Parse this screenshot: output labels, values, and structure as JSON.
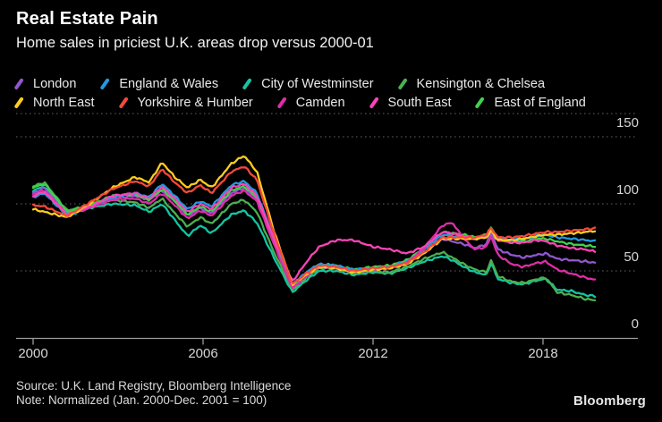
{
  "header": {
    "title": "Real Estate Pain",
    "subtitle": "Home sales in priciest U.K. areas drop versus 2000-01"
  },
  "footer": {
    "source": "Source: U.K. Land Registry, Bloomberg Intelligence",
    "note": "Note: Normalized (Jan. 2000-Dec. 2001 = 100)",
    "brand": "Bloomberg"
  },
  "colors": {
    "background": "#000000",
    "grid": "#606060",
    "axis": "#9b9b9b",
    "tick_label": "#d6d6d6"
  },
  "chart_data": {
    "type": "line",
    "title": "Real Estate Pain",
    "subtitle": "Home sales in priciest U.K. areas drop versus 2000-01",
    "note": "Normalized (Jan. 2000-Dec. 2001 = 100)",
    "legend_position": "top",
    "grid": "dotted-horizontal",
    "x_axis": {
      "tick_labels": [
        "2000",
        "2006",
        "2012",
        "2018"
      ],
      "tick_years": [
        2000,
        2006,
        2012,
        2018
      ],
      "range": [
        2000,
        2019.9
      ]
    },
    "y_axis": {
      "tick_labels": [
        "150",
        "100",
        "50",
        "0"
      ],
      "tick_values": [
        150,
        100,
        50,
        0
      ],
      "gridlines": [
        150,
        100,
        50
      ],
      "range": [
        0,
        167
      ]
    },
    "legend_rows": [
      [
        "London",
        "England & Wales",
        "City of Westminster",
        "Kensington & Chelsea"
      ],
      [
        "North East",
        "Yorkshire & Humber",
        "Camden",
        "South East",
        "East of England"
      ]
    ],
    "x_anchors": [
      2000.0,
      2000.4,
      2001.2,
      2002.0,
      2002.8,
      2003.6,
      2004.1,
      2004.55,
      2005.0,
      2005.45,
      2005.9,
      2006.3,
      2007.0,
      2007.45,
      2007.9,
      2008.5,
      2009.15,
      2009.7,
      2010.1,
      2010.7,
      2011.3,
      2012.0,
      2012.6,
      2013.2,
      2013.8,
      2014.45,
      2014.8,
      2015.2,
      2015.6,
      2016.0,
      2016.17,
      2016.4,
      2016.9,
      2017.3,
      2017.8,
      2018.1,
      2018.5,
      2019.0,
      2019.5,
      2019.9
    ],
    "series": [
      {
        "name": "London",
        "color": "#9257cf",
        "values": [
          108,
          112,
          92,
          98,
          104,
          106,
          103,
          110,
          102,
          91,
          97,
          93,
          108,
          112,
          104,
          72,
          38,
          48,
          54,
          53,
          50,
          52,
          53,
          56,
          64,
          74,
          72,
          70,
          67,
          70,
          79,
          66,
          62,
          60,
          62,
          63,
          59,
          58,
          57,
          56
        ]
      },
      {
        "name": "England & Wales",
        "color": "#2499e0",
        "values": [
          105,
          108,
          91,
          97,
          105,
          108,
          105,
          115,
          106,
          96,
          102,
          98,
          114,
          117,
          108,
          74,
          40,
          50,
          55,
          54,
          51,
          52,
          53,
          57,
          66,
          77,
          76,
          75,
          74,
          76,
          82,
          74,
          73,
          74,
          76,
          77,
          75,
          74,
          73,
          72
        ]
      },
      {
        "name": "City of Westminster",
        "color": "#14c5a4",
        "values": [
          110,
          113,
          93,
          97,
          100,
          99,
          94,
          100,
          88,
          76,
          84,
          78,
          92,
          95,
          86,
          60,
          34,
          44,
          50,
          50,
          47,
          49,
          48,
          52,
          57,
          61,
          58,
          53,
          49,
          47,
          56,
          44,
          41,
          40,
          43,
          44,
          36,
          35,
          32,
          31
        ]
      },
      {
        "name": "Kensington & Chelsea",
        "color": "#4caf50",
        "values": [
          113,
          116,
          95,
          99,
          103,
          101,
          97,
          104,
          93,
          83,
          90,
          85,
          100,
          103,
          94,
          64,
          36,
          46,
          52,
          52,
          48,
          50,
          49,
          53,
          59,
          64,
          60,
          55,
          51,
          49,
          58,
          46,
          42,
          41,
          44,
          45,
          34,
          32,
          29,
          28
        ]
      },
      {
        "name": "North East",
        "color": "#ffcd1e",
        "values": [
          96,
          94,
          90,
          100,
          112,
          120,
          116,
          131,
          120,
          112,
          118,
          112,
          130,
          136,
          124,
          80,
          40,
          48,
          53,
          52,
          49,
          51,
          52,
          55,
          63,
          74,
          74,
          74,
          74,
          75,
          80,
          73,
          73,
          74,
          76,
          77,
          77,
          78,
          79,
          80
        ]
      },
      {
        "name": "Yorkshire & Humber",
        "color": "#f4483c",
        "values": [
          99,
          98,
          91,
          101,
          111,
          117,
          113,
          126,
          116,
          108,
          114,
          108,
          124,
          128,
          118,
          78,
          40,
          49,
          54,
          53,
          50,
          52,
          53,
          56,
          64,
          75,
          75,
          75,
          75,
          77,
          82,
          75,
          75,
          76,
          78,
          79,
          79,
          80,
          81,
          82
        ]
      },
      {
        "name": "Camden",
        "color": "#dc2ea6",
        "values": [
          107,
          110,
          92,
          97,
          103,
          104,
          100,
          108,
          99,
          89,
          95,
          91,
          106,
          110,
          102,
          70,
          37,
          47,
          53,
          52,
          49,
          51,
          52,
          56,
          67,
          84,
          86,
          74,
          66,
          68,
          76,
          62,
          55,
          53,
          56,
          57,
          51,
          48,
          45,
          43
        ]
      },
      {
        "name": "South East",
        "color": "#f944b8",
        "values": [
          106,
          109,
          92,
          98,
          106,
          108,
          104,
          113,
          104,
          94,
          100,
          96,
          112,
          115,
          106,
          74,
          42,
          58,
          68,
          73,
          73,
          68,
          66,
          63,
          68,
          79,
          78,
          76,
          74,
          76,
          81,
          73,
          71,
          71,
          73,
          72,
          69,
          67,
          66,
          64
        ]
      },
      {
        "name": "East of England",
        "color": "#40d24b",
        "values": [
          112,
          115,
          94,
          99,
          106,
          107,
          103,
          111,
          102,
          92,
          98,
          94,
          110,
          113,
          105,
          72,
          39,
          49,
          55,
          54,
          51,
          53,
          54,
          58,
          67,
          79,
          78,
          77,
          75,
          77,
          82,
          74,
          72,
          72,
          74,
          74,
          72,
          70,
          69,
          68
        ]
      }
    ]
  }
}
